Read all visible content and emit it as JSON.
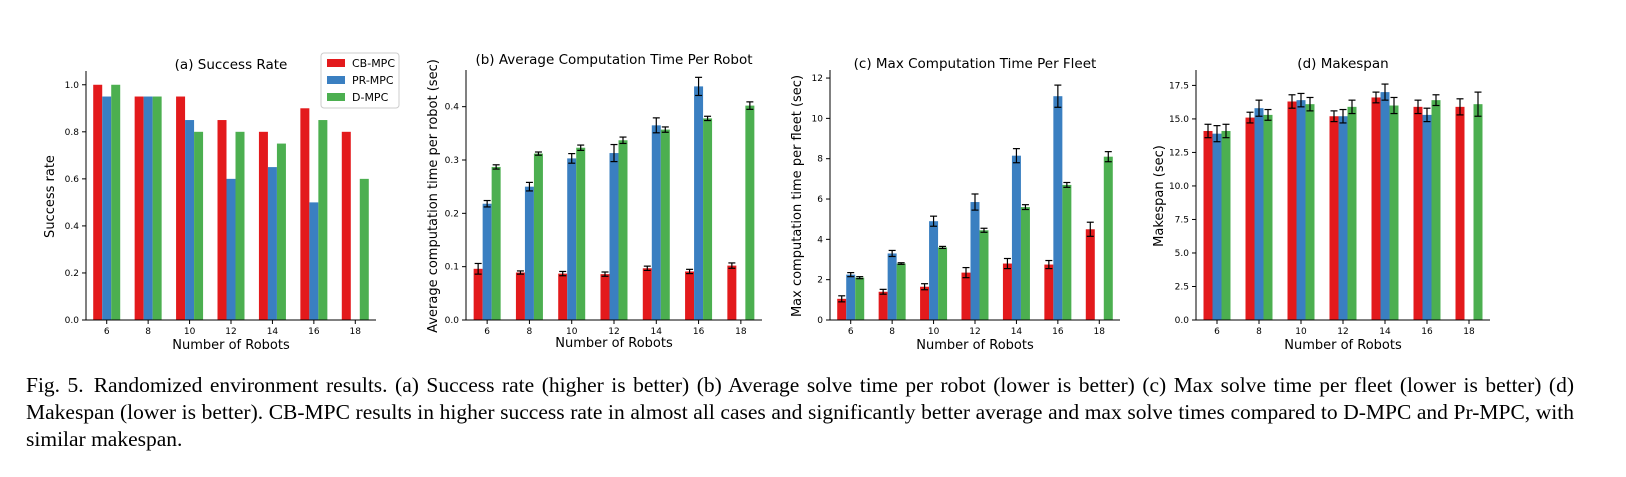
{
  "colors": {
    "CB-MPC": "#e31a1c",
    "PR-MPC": "#3a7fc1",
    "D-MPC": "#4caf50"
  },
  "legend": [
    "CB-MPC",
    "PR-MPC",
    "D-MPC"
  ],
  "caption": {
    "label": "Fig. 5.",
    "text": "Randomized environment results. (a) Success rate (higher is better) (b) Average solve time per robot (lower is better) (c) Max solve time per fleet (lower is better) (d) Makespan (lower is better). CB-MPC results in higher success rate in almost all cases and significantly better average and max solve times compared to D-MPC and Pr-MPC, with similar makespan."
  },
  "chart_data": [
    {
      "type": "bar",
      "title": "(a) Success Rate",
      "xlabel": "Number of Robots",
      "ylabel": "Success rate",
      "categories": [
        "6",
        "8",
        "10",
        "12",
        "14",
        "16",
        "18"
      ],
      "ylim": [
        0,
        1.05
      ],
      "yticks": [
        "0.0",
        "0.2",
        "0.4",
        "0.6",
        "0.8",
        "1.0"
      ],
      "legend_position": "top-right",
      "series": [
        {
          "name": "CB-MPC",
          "values": [
            1.0,
            0.95,
            0.95,
            0.85,
            0.8,
            0.9,
            0.8
          ]
        },
        {
          "name": "PR-MPC",
          "values": [
            0.95,
            0.95,
            0.85,
            0.6,
            0.65,
            0.5,
            null
          ]
        },
        {
          "name": "D-MPC",
          "values": [
            1.0,
            0.95,
            0.8,
            0.8,
            0.75,
            0.85,
            0.6
          ]
        }
      ]
    },
    {
      "type": "bar",
      "title": "(b) Average Computation Time Per Robot",
      "xlabel": "Number of Robots",
      "ylabel": "Average computation time per robot (sec)",
      "categories": [
        "6",
        "8",
        "10",
        "12",
        "14",
        "16",
        "18"
      ],
      "ylim": [
        0,
        0.465
      ],
      "yticks": [
        "0.0",
        "0.1",
        "0.2",
        "0.3",
        "0.4"
      ],
      "series": [
        {
          "name": "CB-MPC",
          "values": [
            0.096,
            0.089,
            0.087,
            0.086,
            0.097,
            0.091,
            0.102
          ],
          "errors": [
            0.01,
            0.003,
            0.004,
            0.004,
            0.004,
            0.004,
            0.005
          ]
        },
        {
          "name": "PR-MPC",
          "values": [
            0.218,
            0.25,
            0.303,
            0.313,
            0.365,
            0.438,
            null
          ],
          "errors": [
            0.006,
            0.008,
            0.009,
            0.016,
            0.014,
            0.017,
            null
          ]
        },
        {
          "name": "D-MPC",
          "values": [
            0.287,
            0.312,
            0.323,
            0.337,
            0.357,
            0.378,
            0.402
          ],
          "errors": [
            0.004,
            0.003,
            0.005,
            0.006,
            0.005,
            0.004,
            0.007
          ]
        }
      ]
    },
    {
      "type": "bar",
      "title": "(c) Max Computation Time Per Fleet",
      "xlabel": "Number of Robots",
      "ylabel": "Max computation time per fleet (sec)",
      "categories": [
        "6",
        "8",
        "10",
        "12",
        "14",
        "16",
        "18"
      ],
      "ylim": [
        0,
        12.3
      ],
      "yticks": [
        "0",
        "2",
        "4",
        "6",
        "8",
        "10",
        "12"
      ],
      "series": [
        {
          "name": "CB-MPC",
          "values": [
            1.05,
            1.4,
            1.65,
            2.35,
            2.8,
            2.75,
            4.5
          ],
          "errors": [
            0.15,
            0.12,
            0.15,
            0.25,
            0.25,
            0.2,
            0.35
          ]
        },
        {
          "name": "PR-MPC",
          "values": [
            2.25,
            3.3,
            4.9,
            5.85,
            8.15,
            11.1,
            null
          ],
          "errors": [
            0.1,
            0.15,
            0.25,
            0.4,
            0.35,
            0.55,
            null
          ]
        },
        {
          "name": "D-MPC",
          "values": [
            2.1,
            2.8,
            3.6,
            4.45,
            5.6,
            6.7,
            8.1
          ],
          "errors": [
            0.05,
            0.04,
            0.05,
            0.1,
            0.12,
            0.12,
            0.25
          ]
        }
      ]
    },
    {
      "type": "bar",
      "title": "(d) Makespan",
      "xlabel": "Number of Robots",
      "ylabel": "Makespan (sec)",
      "categories": [
        "6",
        "8",
        "10",
        "12",
        "14",
        "16",
        "18"
      ],
      "ylim": [
        0,
        18.5
      ],
      "yticks": [
        "0.0",
        "2.5",
        "5.0",
        "7.5",
        "10.0",
        "12.5",
        "15.0",
        "17.5"
      ],
      "series": [
        {
          "name": "CB-MPC",
          "values": [
            14.1,
            15.1,
            16.3,
            15.2,
            16.6,
            15.9,
            15.9
          ],
          "errors": [
            0.5,
            0.4,
            0.5,
            0.4,
            0.4,
            0.5,
            0.6
          ]
        },
        {
          "name": "PR-MPC",
          "values": [
            13.9,
            15.8,
            16.4,
            15.2,
            17.0,
            15.3,
            null
          ],
          "errors": [
            0.6,
            0.6,
            0.5,
            0.5,
            0.6,
            0.5,
            null
          ]
        },
        {
          "name": "D-MPC",
          "values": [
            14.1,
            15.3,
            16.1,
            15.9,
            16.0,
            16.4,
            16.1
          ],
          "errors": [
            0.5,
            0.4,
            0.5,
            0.5,
            0.6,
            0.4,
            0.9
          ]
        }
      ]
    }
  ]
}
